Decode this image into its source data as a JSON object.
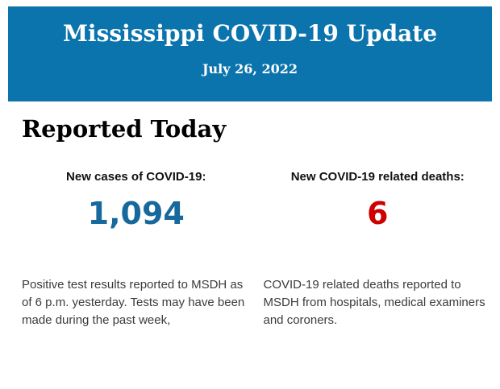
{
  "banner": {
    "title": "Mississippi COVID-19 Update",
    "date": "July 26, 2022",
    "background_color": "#0b74ad",
    "text_color": "#ffffff"
  },
  "section": {
    "heading": "Reported Today",
    "heading_color": "#000000"
  },
  "stats": [
    {
      "label": "New cases of COVID-19:",
      "value": "1,094",
      "value_color": "#17699d",
      "description": "Positive test results reported to MSDH as of 6 p.m. yesterday. Tests may have been made during the past week,"
    },
    {
      "label": "New COVID-19 related deaths:",
      "value": "6",
      "value_color": "#cc0000",
      "description": "COVID-19 related deaths reported to MSDH from hospitals, medical examiners and coroners."
    }
  ]
}
